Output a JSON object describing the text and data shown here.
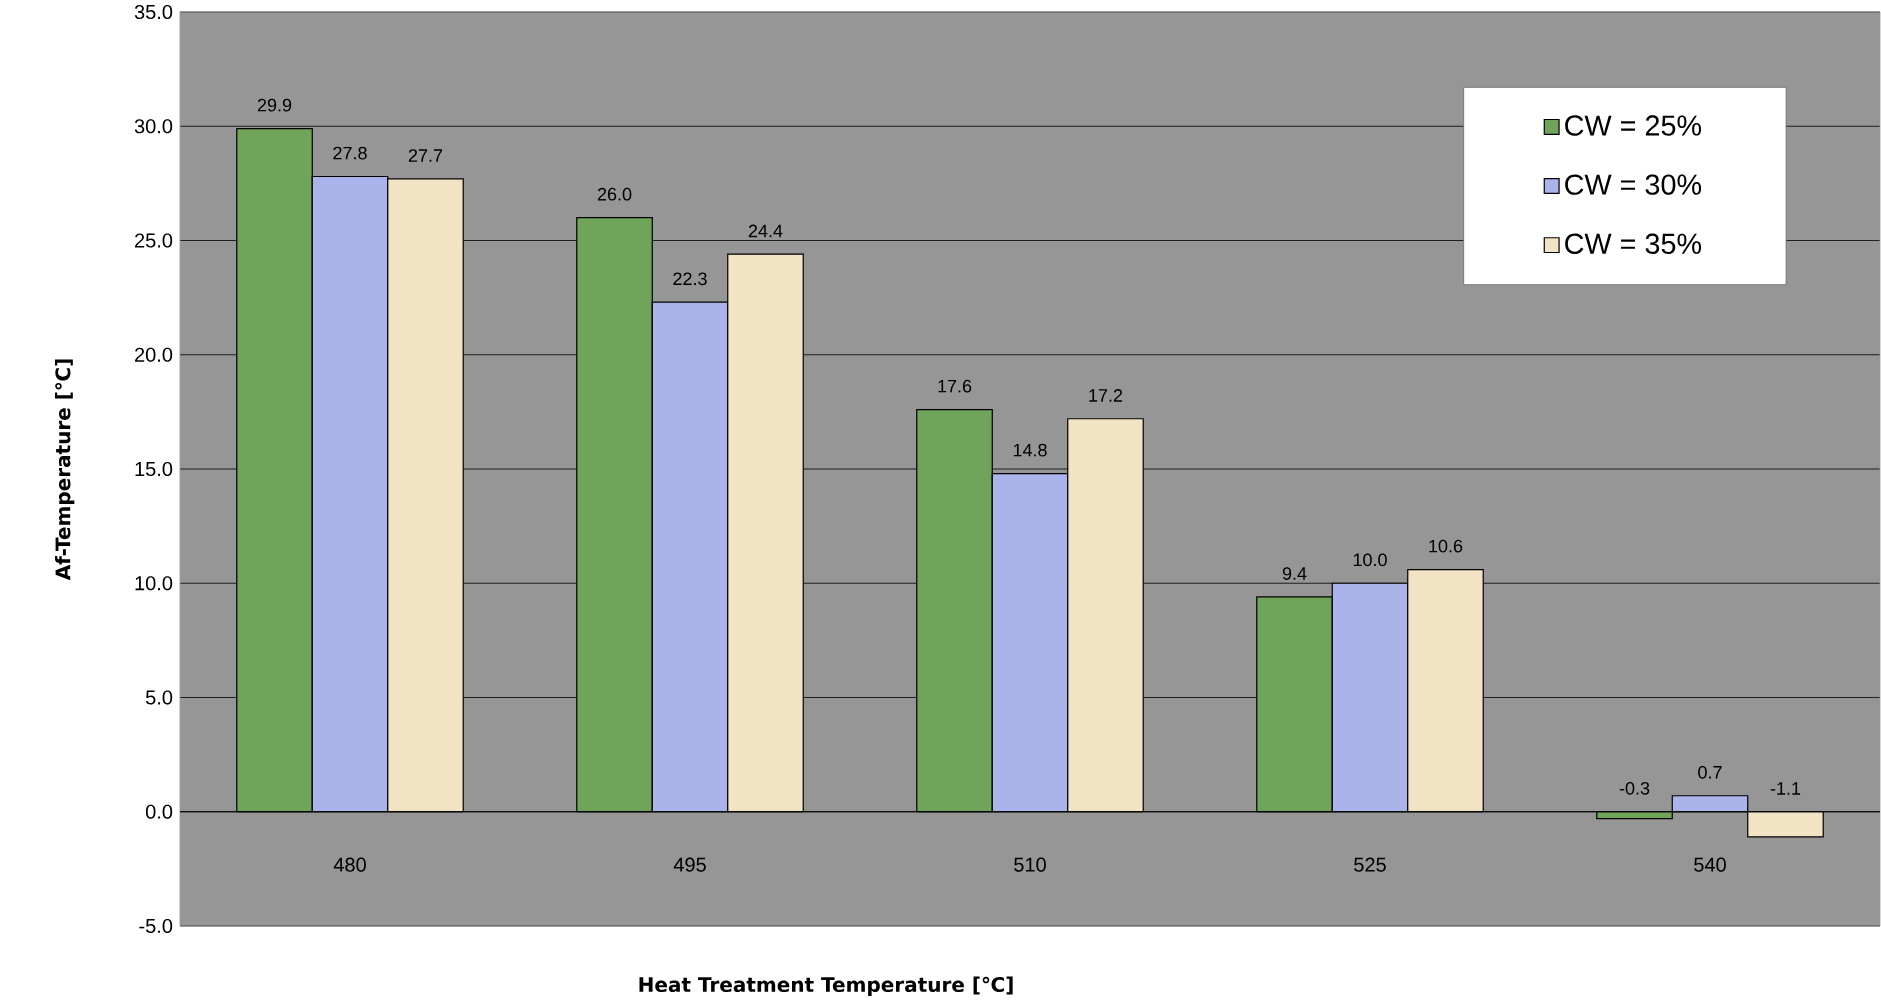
{
  "chart_data": {
    "type": "bar",
    "xlabel": "Heat Treatment Temperature [℃]",
    "ylabel": "Af-Temperature [℃]",
    "categories": [
      "480",
      "495",
      "510",
      "525",
      "540"
    ],
    "series": [
      {
        "name": "CW = 25%",
        "color": "#6fa45a",
        "values": [
          29.9,
          26.0,
          17.6,
          9.4,
          -0.3
        ],
        "value_labels": [
          "29.9",
          "26.0",
          "17.6",
          "9.4",
          "-0.3"
        ]
      },
      {
        "name": "CW = 30%",
        "color": "#aab3ea",
        "values": [
          27.8,
          22.3,
          14.8,
          10.0,
          0.7
        ],
        "value_labels": [
          "27.8",
          "22.3",
          "14.8",
          "10.0",
          "0.7"
        ]
      },
      {
        "name": "CW = 35%",
        "color": "#f1e3c4",
        "values": [
          27.7,
          24.4,
          17.2,
          10.6,
          -1.1
        ],
        "value_labels": [
          "27.7",
          "24.4",
          "17.2",
          "10.6",
          "-1.1"
        ]
      }
    ],
    "ylim": [
      -5,
      35
    ],
    "yticks": [
      {
        "value": -5,
        "label": "-5.0"
      },
      {
        "value": 0,
        "label": "0.0"
      },
      {
        "value": 5,
        "label": "5.0"
      },
      {
        "value": 10,
        "label": "10.0"
      },
      {
        "value": 15,
        "label": "15.0"
      },
      {
        "value": 20,
        "label": "20.0"
      },
      {
        "value": 25,
        "label": "25.0"
      },
      {
        "value": 30,
        "label": "30.0"
      },
      {
        "value": 35,
        "label": "35.0"
      }
    ],
    "grid": "y",
    "legend": "top right"
  }
}
